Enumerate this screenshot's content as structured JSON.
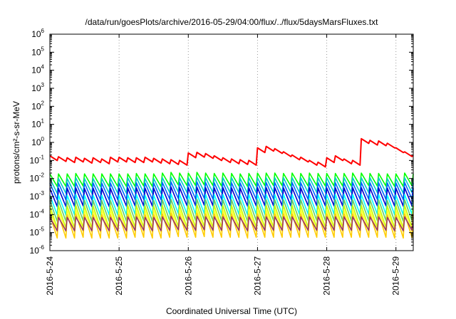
{
  "chart_data": {
    "type": "line",
    "title": "/data/run/goesPlots/archive/2016-05-29/04:00/flux/../flux/5daysMarsFluxes.txt",
    "xlabel": "Coordinated Universal Time (UTC)",
    "ylabel": "protons/cm²-s-sr-MeV",
    "yscale": "log",
    "ylim": [
      1e-06,
      1000000.0
    ],
    "y_ticks": [
      {
        "base": "10",
        "exp": "-6",
        "value": 1e-06
      },
      {
        "base": "10",
        "exp": "-5",
        "value": 1e-05
      },
      {
        "base": "10",
        "exp": "-4",
        "value": 0.0001
      },
      {
        "base": "10",
        "exp": "-3",
        "value": 0.001
      },
      {
        "base": "10",
        "exp": "-2",
        "value": 0.01
      },
      {
        "base": "10",
        "exp": "-1",
        "value": 0.1
      },
      {
        "base": "10",
        "exp": "0",
        "value": 1
      },
      {
        "base": "10",
        "exp": "1",
        "value": 10
      },
      {
        "base": "10",
        "exp": "2",
        "value": 100
      },
      {
        "base": "10",
        "exp": "3",
        "value": 1000
      },
      {
        "base": "10",
        "exp": "4",
        "value": 10000
      },
      {
        "base": "10",
        "exp": "5",
        "value": 100000
      },
      {
        "base": "10",
        "exp": "6",
        "value": 1000000
      }
    ],
    "xlim": [
      "2016-5-24",
      "2016-5-29 06:00"
    ],
    "x_ticks": [
      "2016-5-24",
      "2016-5-25",
      "2016-5-26",
      "2016-5-27",
      "2016-5-28",
      "2016-5-29"
    ],
    "x_grid": true,
    "y_grid": false,
    "x_dates": [
      "2016-5-24 00:00",
      "2016-5-24 03:00",
      "2016-5-24 06:00",
      "2016-5-24 09:00",
      "2016-5-24 12:00",
      "2016-5-24 15:00",
      "2016-5-24 18:00",
      "2016-5-24 21:00",
      "2016-5-25 00:00",
      "2016-5-25 03:00",
      "2016-5-25 06:00",
      "2016-5-25 09:00",
      "2016-5-25 12:00",
      "2016-5-25 15:00",
      "2016-5-25 18:00",
      "2016-5-25 21:00",
      "2016-5-26 00:00",
      "2016-5-26 03:00",
      "2016-5-26 06:00",
      "2016-5-26 09:00",
      "2016-5-26 12:00",
      "2016-5-26 15:00",
      "2016-5-26 18:00",
      "2016-5-26 21:00",
      "2016-5-27 00:00",
      "2016-5-27 03:00",
      "2016-5-27 06:00",
      "2016-5-27 09:00",
      "2016-5-27 12:00",
      "2016-5-27 15:00",
      "2016-5-27 18:00",
      "2016-5-27 21:00",
      "2016-5-28 00:00",
      "2016-5-28 03:00",
      "2016-5-28 06:00",
      "2016-5-28 09:00",
      "2016-5-28 12:00",
      "2016-5-28 15:00",
      "2016-5-28 18:00",
      "2016-5-28 21:00",
      "2016-5-29 00:00",
      "2016-5-29 03:00",
      "2016-5-29 06:00"
    ],
    "sawtooth_period_hours": 3,
    "series": [
      {
        "color": "#ff0000",
        "values": [
          0.18,
          0.16,
          0.14,
          0.15,
          0.13,
          0.14,
          0.12,
          0.15,
          0.15,
          0.14,
          0.14,
          0.15,
          0.13,
          0.12,
          0.11,
          0.1,
          0.26,
          0.28,
          0.24,
          0.18,
          0.14,
          0.12,
          0.11,
          0.1,
          0.5,
          0.6,
          0.45,
          0.3,
          0.2,
          0.15,
          0.1,
          0.08,
          0.14,
          0.18,
          0.12,
          0.1,
          1.6,
          1.3,
          1.2,
          0.9,
          0.5,
          0.3,
          0.2
        ],
        "pulse_min_ratio": 0.55
      },
      {
        "color": "#00ff00",
        "values": [
          0.018,
          0.018,
          0.018,
          0.019,
          0.018,
          0.018,
          0.018,
          0.018,
          0.018,
          0.018,
          0.019,
          0.018,
          0.018,
          0.02,
          0.022,
          0.02,
          0.02,
          0.022,
          0.02,
          0.019,
          0.02,
          0.019,
          0.018,
          0.019,
          0.02,
          0.02,
          0.02,
          0.019,
          0.02,
          0.019,
          0.02,
          0.019,
          0.019,
          0.019,
          0.019,
          0.02,
          0.02,
          0.019,
          0.019,
          0.018,
          0.018,
          0.02,
          0.018
        ],
        "pulse_min_ratio": 0.2
      },
      {
        "color": "#00cccc",
        "values": [
          0.01,
          0.01,
          0.01,
          0.011,
          0.01,
          0.01,
          0.01,
          0.01,
          0.01,
          0.011,
          0.011,
          0.01,
          0.01,
          0.011,
          0.012,
          0.011,
          0.011,
          0.012,
          0.011,
          0.011,
          0.011,
          0.011,
          0.01,
          0.011,
          0.011,
          0.011,
          0.011,
          0.011,
          0.011,
          0.011,
          0.011,
          0.011,
          0.011,
          0.011,
          0.011,
          0.011,
          0.011,
          0.011,
          0.011,
          0.01,
          0.01,
          0.011,
          0.01
        ],
        "pulse_min_ratio": 0.15
      },
      {
        "color": "#0066ff",
        "values": [
          0.0055,
          0.0055,
          0.0056,
          0.0058,
          0.0055,
          0.0056,
          0.0055,
          0.0055,
          0.0056,
          0.0057,
          0.0058,
          0.0056,
          0.0056,
          0.006,
          0.0065,
          0.006,
          0.006,
          0.0065,
          0.006,
          0.0058,
          0.006,
          0.0058,
          0.0056,
          0.0058,
          0.006,
          0.006,
          0.006,
          0.0058,
          0.006,
          0.0058,
          0.006,
          0.0058,
          0.0058,
          0.0058,
          0.0058,
          0.006,
          0.006,
          0.0058,
          0.0058,
          0.0056,
          0.0056,
          0.006,
          0.0056
        ],
        "pulse_min_ratio": 0.12
      },
      {
        "color": "#0000cc",
        "values": [
          0.0028,
          0.0028,
          0.0029,
          0.003,
          0.0028,
          0.0029,
          0.0028,
          0.0028,
          0.0029,
          0.003,
          0.003,
          0.0029,
          0.0029,
          0.0031,
          0.0034,
          0.0031,
          0.0031,
          0.0033,
          0.0031,
          0.003,
          0.0031,
          0.003,
          0.0029,
          0.003,
          0.0031,
          0.0031,
          0.0031,
          0.003,
          0.0031,
          0.003,
          0.0031,
          0.003,
          0.003,
          0.003,
          0.003,
          0.0031,
          0.0031,
          0.003,
          0.003,
          0.0029,
          0.0029,
          0.0031,
          0.0029
        ],
        "pulse_min_ratio": 0.1
      },
      {
        "color": "#00ffff",
        "values": [
          0.0012,
          0.0012,
          0.0012,
          0.0013,
          0.0012,
          0.0012,
          0.0012,
          0.0012,
          0.0012,
          0.0013,
          0.0013,
          0.0012,
          0.0012,
          0.0013,
          0.0014,
          0.0013,
          0.0013,
          0.0014,
          0.0013,
          0.0013,
          0.0013,
          0.0013,
          0.0012,
          0.0013,
          0.0013,
          0.0013,
          0.0013,
          0.0013,
          0.0013,
          0.0013,
          0.0013,
          0.0013,
          0.0013,
          0.0013,
          0.0013,
          0.0013,
          0.0013,
          0.0013,
          0.0013,
          0.0012,
          0.0012,
          0.0013,
          0.0012
        ],
        "pulse_min_ratio": 0.08
      },
      {
        "color": "#66cc66",
        "values": [
          0.0006,
          0.0006,
          0.0006,
          0.00065,
          0.0006,
          0.0006,
          0.0006,
          0.0006,
          0.0006,
          0.00065,
          0.00065,
          0.0006,
          0.0006,
          0.00065,
          0.0007,
          0.00065,
          0.00065,
          0.0007,
          0.00065,
          0.00065,
          0.00065,
          0.00065,
          0.0006,
          0.00065,
          0.00065,
          0.00065,
          0.00065,
          0.00065,
          0.00065,
          0.00065,
          0.00065,
          0.00065,
          0.00065,
          0.00065,
          0.00065,
          0.00065,
          0.00065,
          0.00065,
          0.00065,
          0.0006,
          0.0006,
          0.00065,
          0.0006
        ],
        "pulse_min_ratio": 0.07
      },
      {
        "color": "#ccff00",
        "values": [
          0.0003,
          0.0003,
          0.0003,
          0.00032,
          0.0003,
          0.0003,
          0.0003,
          0.0003,
          0.0003,
          0.00032,
          0.00032,
          0.0003,
          0.0003,
          0.00032,
          0.00035,
          0.00032,
          0.00032,
          0.00035,
          0.00032,
          0.00032,
          0.00032,
          0.00032,
          0.0003,
          0.00032,
          0.00032,
          0.00032,
          0.00032,
          0.00032,
          0.00032,
          0.00032,
          0.00032,
          0.00032,
          0.00032,
          0.00032,
          0.00032,
          0.00032,
          0.00032,
          0.00032,
          0.00032,
          0.0003,
          0.0003,
          0.00032,
          0.0003
        ],
        "pulse_min_ratio": 0.06
      },
      {
        "color": "#ffff33",
        "values": [
          0.00018,
          0.00018,
          0.00018,
          0.00019,
          0.00018,
          0.00018,
          0.00018,
          0.00018,
          0.00018,
          0.00019,
          0.00019,
          0.00018,
          0.00018,
          0.00019,
          0.0002,
          0.00019,
          0.00019,
          0.0002,
          0.00019,
          0.00019,
          0.00019,
          0.00019,
          0.00018,
          0.00019,
          0.00019,
          0.00019,
          0.00019,
          0.00019,
          0.00019,
          0.00019,
          0.00019,
          0.00019,
          0.00019,
          0.00019,
          0.00019,
          0.00019,
          0.00019,
          0.00019,
          0.00019,
          0.00018,
          0.00018,
          0.00019,
          0.00018
        ],
        "pulse_min_ratio": 0.06
      },
      {
        "color": "#ffcc00",
        "values": [
          0.0001,
          0.0001,
          0.0001,
          0.00011,
          0.0001,
          0.0001,
          0.0001,
          0.0001,
          0.0001,
          0.00011,
          0.00011,
          0.0001,
          0.0001,
          0.00011,
          0.00012,
          0.00011,
          0.00011,
          0.00012,
          0.00011,
          0.00011,
          0.00011,
          0.00011,
          0.0001,
          0.00011,
          0.00011,
          0.00011,
          0.00011,
          0.00011,
          0.00011,
          0.00011,
          0.00011,
          0.00011,
          0.00011,
          0.00011,
          0.00011,
          0.00011,
          0.00011,
          0.00011,
          0.00011,
          0.0001,
          0.0001,
          0.00011,
          0.0001
        ],
        "pulse_min_ratio": 0.05
      },
      {
        "color": "#993366",
        "values": [
          7e-05,
          7e-05,
          7e-05,
          7.5e-05,
          7e-05,
          7e-05,
          7e-05,
          7e-05,
          7e-05,
          7.5e-05,
          7.5e-05,
          7e-05,
          7e-05,
          7.5e-05,
          8e-05,
          7.5e-05,
          7.5e-05,
          8e-05,
          7.5e-05,
          7.5e-05,
          7.5e-05,
          7.5e-05,
          7e-05,
          7.5e-05,
          7.5e-05,
          7.5e-05,
          7.5e-05,
          7.5e-05,
          7.5e-05,
          7.5e-05,
          7.5e-05,
          7.5e-05,
          7.5e-05,
          7.5e-05,
          7.5e-05,
          7.5e-05,
          7.5e-05,
          7.5e-05,
          7.5e-05,
          7e-05,
          7e-05,
          7.5e-05,
          7e-05
        ],
        "pulse_min_ratio": 0.18
      }
    ]
  }
}
